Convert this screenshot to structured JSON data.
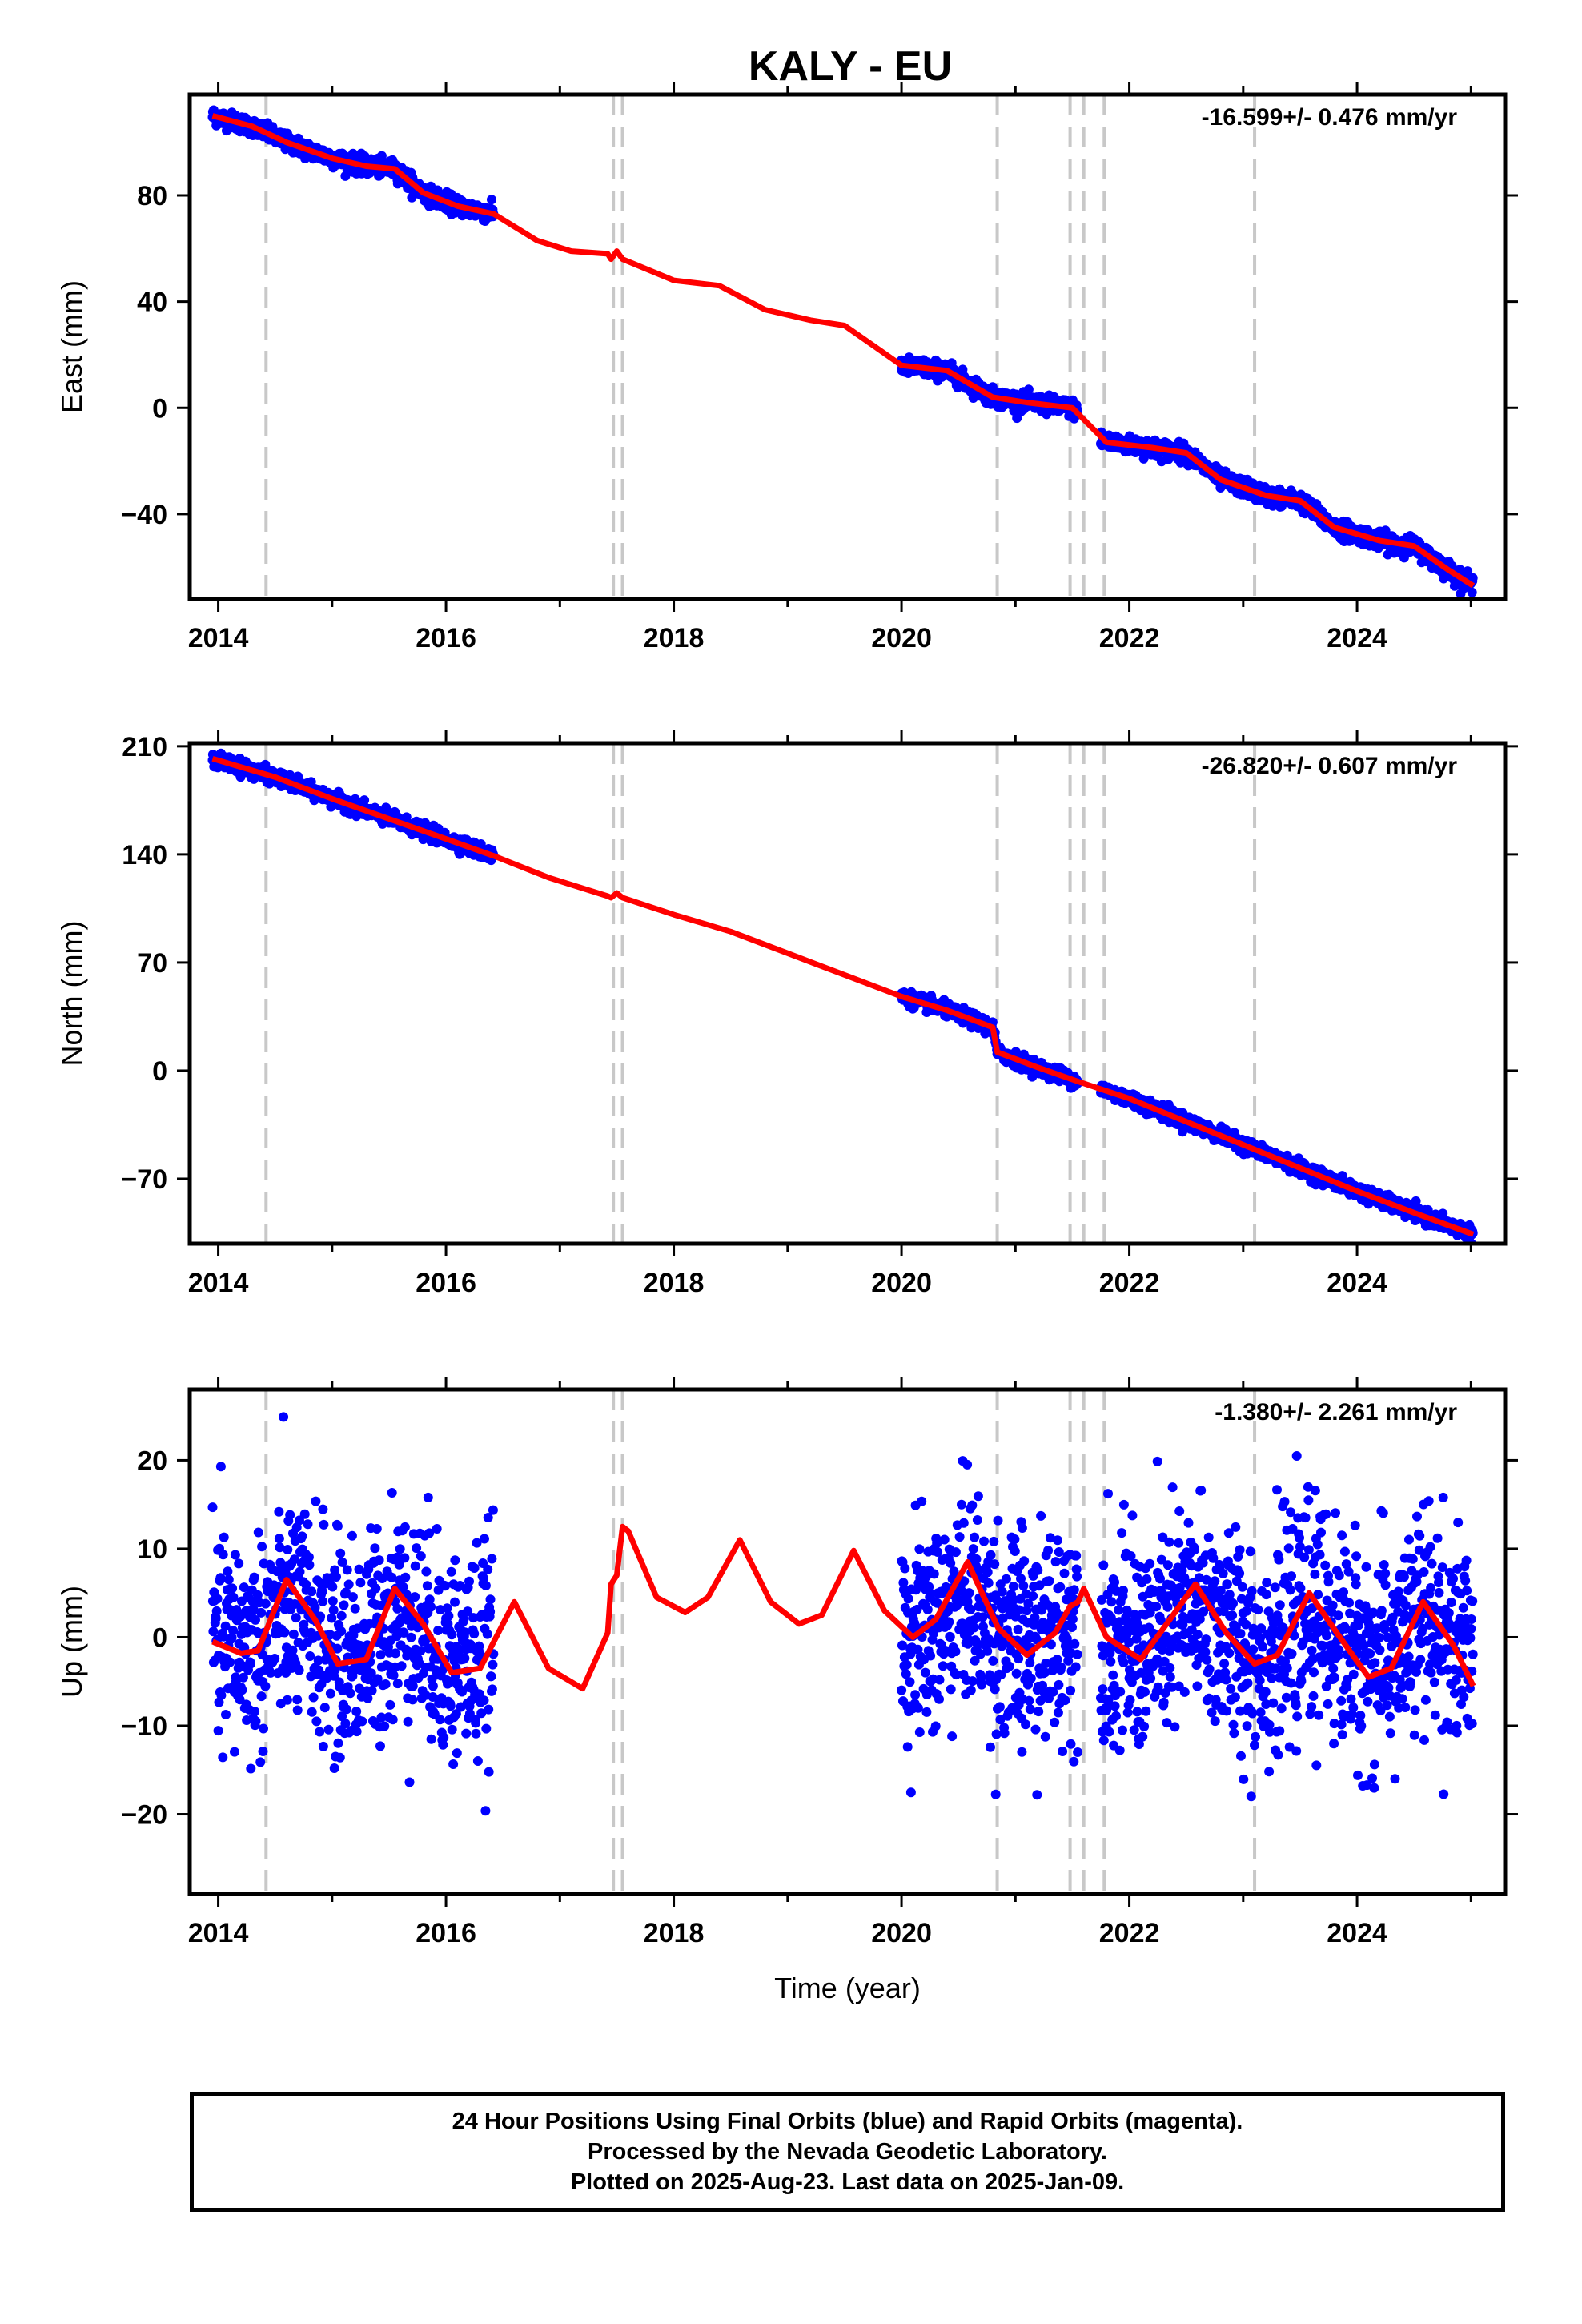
{
  "figure": {
    "title": "KALY - EU"
  },
  "chart_data": [
    {
      "type": "scatter",
      "panel": "east",
      "ylabel": "East (mm)",
      "xlabel": "",
      "xlim": [
        2013.75,
        2025.3
      ],
      "ylim": [
        -72,
        118
      ],
      "xticks": [
        2014,
        2016,
        2018,
        2020,
        2022,
        2024
      ],
      "yticks": [
        -40,
        0,
        40,
        80
      ],
      "ytick_labels": [
        "−40",
        "0",
        "40",
        "80"
      ],
      "rate_label": "-16.599+/- 0.476 mm/yr",
      "series": [
        {
          "role": "observations",
          "color": "#0000ff",
          "segments": [
            {
              "x": [
                2013.95,
                2016.42
              ],
              "y": [
                110,
                73
              ]
            },
            {
              "x": [
                2020.0,
                2021.55
              ],
              "y": [
                15,
                -2
              ]
            },
            {
              "x": [
                2021.75,
                2025.02
              ],
              "y": [
                -13,
                -67
              ]
            }
          ]
        },
        {
          "role": "model",
          "color": "#ff0000",
          "x": [
            2013.95,
            2014.3,
            2014.6,
            2015.0,
            2015.3,
            2015.55,
            2015.8,
            2016.1,
            2016.42,
            2016.8,
            2017.1,
            2017.42,
            2017.45,
            2017.5,
            2017.55,
            2018.0,
            2018.4,
            2018.8,
            2019.2,
            2019.5,
            2019.8,
            2020.0,
            2020.4,
            2020.8,
            2021.1,
            2021.5,
            2021.8,
            2022.2,
            2022.5,
            2022.8,
            2023.2,
            2023.5,
            2023.8,
            2024.2,
            2024.5,
            2024.8,
            2025.02
          ],
          "y": [
            110,
            106,
            100,
            94,
            91,
            90,
            81,
            76,
            73,
            63,
            59,
            58,
            56,
            59,
            56,
            48,
            46,
            37,
            33,
            31,
            22,
            16,
            14,
            4,
            2,
            0,
            -13,
            -15,
            -17,
            -27,
            -33,
            -35,
            -45,
            -50,
            -52,
            -61,
            -67
          ]
        }
      ],
      "offset_epochs": [
        2014.42,
        2017.47,
        2017.55,
        2020.84,
        2021.48,
        2021.6,
        2021.78,
        2023.1
      ]
    },
    {
      "type": "scatter",
      "panel": "north",
      "ylabel": "North (mm)",
      "xlabel": "",
      "xlim": [
        2013.75,
        2025.3
      ],
      "ylim": [
        -112,
        212
      ],
      "xticks": [
        2014,
        2016,
        2018,
        2020,
        2022,
        2024
      ],
      "yticks": [
        -70,
        0,
        70,
        140,
        210
      ],
      "ytick_labels": [
        "−70",
        "0",
        "70",
        "140",
        "210"
      ],
      "rate_label": "-26.820+/- 0.607 mm/yr",
      "series": [
        {
          "role": "observations",
          "color": "#0000ff",
          "segments": [
            {
              "x": [
                2013.95,
                2016.42
              ],
              "y": [
                205,
                138
              ]
            },
            {
              "x": [
                2020.0,
                2021.55
              ],
              "y": [
                45,
                -8
              ]
            },
            {
              "x": [
                2021.75,
                2025.02
              ],
              "y": [
                -15,
                -105
              ]
            }
          ]
        },
        {
          "role": "model",
          "color": "#ff0000",
          "x": [
            2013.95,
            2014.5,
            2015.0,
            2015.5,
            2016.0,
            2016.42,
            2016.9,
            2017.42,
            2017.45,
            2017.5,
            2017.55,
            2018.0,
            2018.5,
            2019.0,
            2019.5,
            2020.0,
            2020.4,
            2020.8,
            2020.84,
            2021.2,
            2021.55,
            2022.0,
            2022.5,
            2023.0,
            2023.5,
            2024.0,
            2024.5,
            2025.02
          ],
          "y": [
            202,
            190,
            176,
            163,
            150,
            139,
            125,
            113,
            112,
            115,
            112,
            101,
            90,
            76,
            62,
            48,
            39,
            28,
            12,
            2,
            -7,
            -18,
            -33,
            -48,
            -63,
            -78,
            -92,
            -106
          ]
        }
      ],
      "offset_epochs": [
        2014.42,
        2017.47,
        2017.55,
        2020.84,
        2021.48,
        2021.6,
        2021.78,
        2023.1
      ]
    },
    {
      "type": "scatter",
      "panel": "up",
      "ylabel": "Up (mm)",
      "xlabel": "Time (year)",
      "xlim": [
        2013.75,
        2025.3
      ],
      "ylim": [
        -29,
        28
      ],
      "xticks": [
        2014,
        2016,
        2018,
        2020,
        2022,
        2024
      ],
      "yticks": [
        -20,
        -10,
        0,
        10,
        20
      ],
      "ytick_labels": [
        "−20",
        "−10",
        "0",
        "10",
        "20"
      ],
      "rate_label": "-1.380+/- 2.261 mm/yr",
      "series": [
        {
          "role": "observations",
          "color": "#0000ff",
          "segments": [
            {
              "x": [
                2013.95,
                2016.42
              ],
              "y": [
                0,
                0
              ],
              "scatter_sd": 8
            },
            {
              "x": [
                2020.0,
                2021.55
              ],
              "y": [
                2,
                2
              ],
              "scatter_sd": 8
            },
            {
              "x": [
                2021.75,
                2025.02
              ],
              "y": [
                0,
                -4
              ],
              "scatter_sd": 8
            }
          ]
        },
        {
          "role": "model",
          "color": "#ff0000",
          "x": [
            2013.95,
            2014.2,
            2014.35,
            2014.6,
            2014.85,
            2015.05,
            2015.3,
            2015.55,
            2015.8,
            2016.05,
            2016.3,
            2016.6,
            2016.9,
            2017.2,
            2017.42,
            2017.45,
            2017.5,
            2017.55,
            2017.6,
            2017.85,
            2018.1,
            2018.3,
            2018.58,
            2018.85,
            2019.1,
            2019.3,
            2019.58,
            2019.85,
            2020.1,
            2020.3,
            2020.58,
            2020.85,
            2021.1,
            2021.35,
            2021.48,
            2021.55,
            2021.6,
            2021.8,
            2022.1,
            2022.3,
            2022.58,
            2022.85,
            2023.1,
            2023.3,
            2023.58,
            2023.85,
            2024.1,
            2024.3,
            2024.58,
            2024.85,
            2025.02
          ],
          "y": [
            -0.5,
            -1.8,
            -1.5,
            6.5,
            2.0,
            -3.0,
            -2.5,
            5.5,
            1.5,
            -4.0,
            -3.5,
            4.0,
            -3.5,
            -5.8,
            0.5,
            6.0,
            7.0,
            12.5,
            12.0,
            4.5,
            2.8,
            4.5,
            11.0,
            4.0,
            1.5,
            2.5,
            9.8,
            3.0,
            0.0,
            2.0,
            8.5,
            1.0,
            -2.0,
            0.5,
            3.5,
            4.0,
            5.5,
            0.0,
            -2.5,
            1.0,
            6.0,
            0.5,
            -3.0,
            -2.0,
            5.0,
            0.0,
            -4.5,
            -3.5,
            4.0,
            -1.0,
            -5.5
          ]
        }
      ],
      "offset_epochs": [
        2014.42,
        2017.47,
        2017.55,
        2020.84,
        2021.48,
        2021.6,
        2021.78,
        2023.1
      ]
    }
  ],
  "footer": {
    "line1": "24 Hour Positions Using Final Orbits (blue) and Rapid Orbits (magenta).",
    "line2": "Processed by the Nevada Geodetic Laboratory.",
    "line3": "Plotted on 2025-Aug-23. Last data on 2025-Jan-09."
  }
}
